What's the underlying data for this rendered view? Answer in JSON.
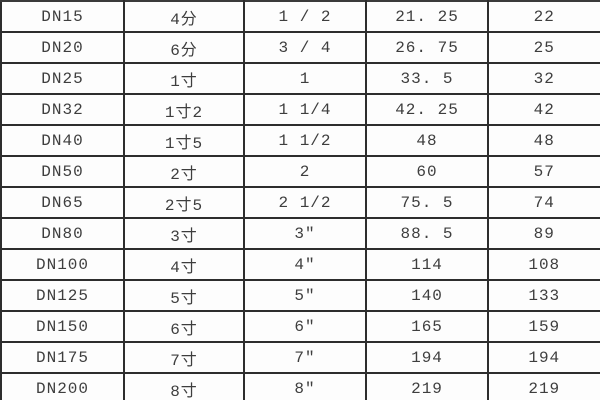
{
  "colors": {
    "grid_border": "#2d2d2d",
    "right_edge": "#8c8c8c",
    "text": "#3e3e3e",
    "background": "#fdfdfd"
  },
  "table": {
    "description_columns": [
      "dn-designation",
      "chinese-size",
      "inch-size",
      "outer-diameter-mm",
      "outer-diameter-2-mm"
    ],
    "rows": [
      [
        "DN15",
        "4分",
        "1 / 2",
        "21. 25",
        "22"
      ],
      [
        "DN20",
        "6分",
        "3 / 4",
        "26. 75",
        "25"
      ],
      [
        "DN25",
        "1寸",
        "1",
        "33. 5",
        "32"
      ],
      [
        "DN32",
        "1寸2",
        "1 1/4",
        "42. 25",
        "42"
      ],
      [
        "DN40",
        "1寸5",
        "1 1/2",
        "48",
        "48"
      ],
      [
        "DN50",
        "2寸",
        "2",
        "60",
        "57"
      ],
      [
        "DN65",
        "2寸5",
        "2 1/2",
        "75. 5",
        "74"
      ],
      [
        "DN80",
        "3寸",
        "3″",
        "88. 5",
        "89"
      ],
      [
        "DN100",
        "4寸",
        "4″",
        "114",
        "108"
      ],
      [
        "DN125",
        "5寸",
        "5″",
        "140",
        "133"
      ],
      [
        "DN150",
        "6寸",
        "6″",
        "165",
        "159"
      ],
      [
        "DN175",
        "7寸",
        "7″",
        "194",
        "194"
      ],
      [
        "DN200",
        "8寸",
        "8″",
        "219",
        "219"
      ]
    ]
  }
}
